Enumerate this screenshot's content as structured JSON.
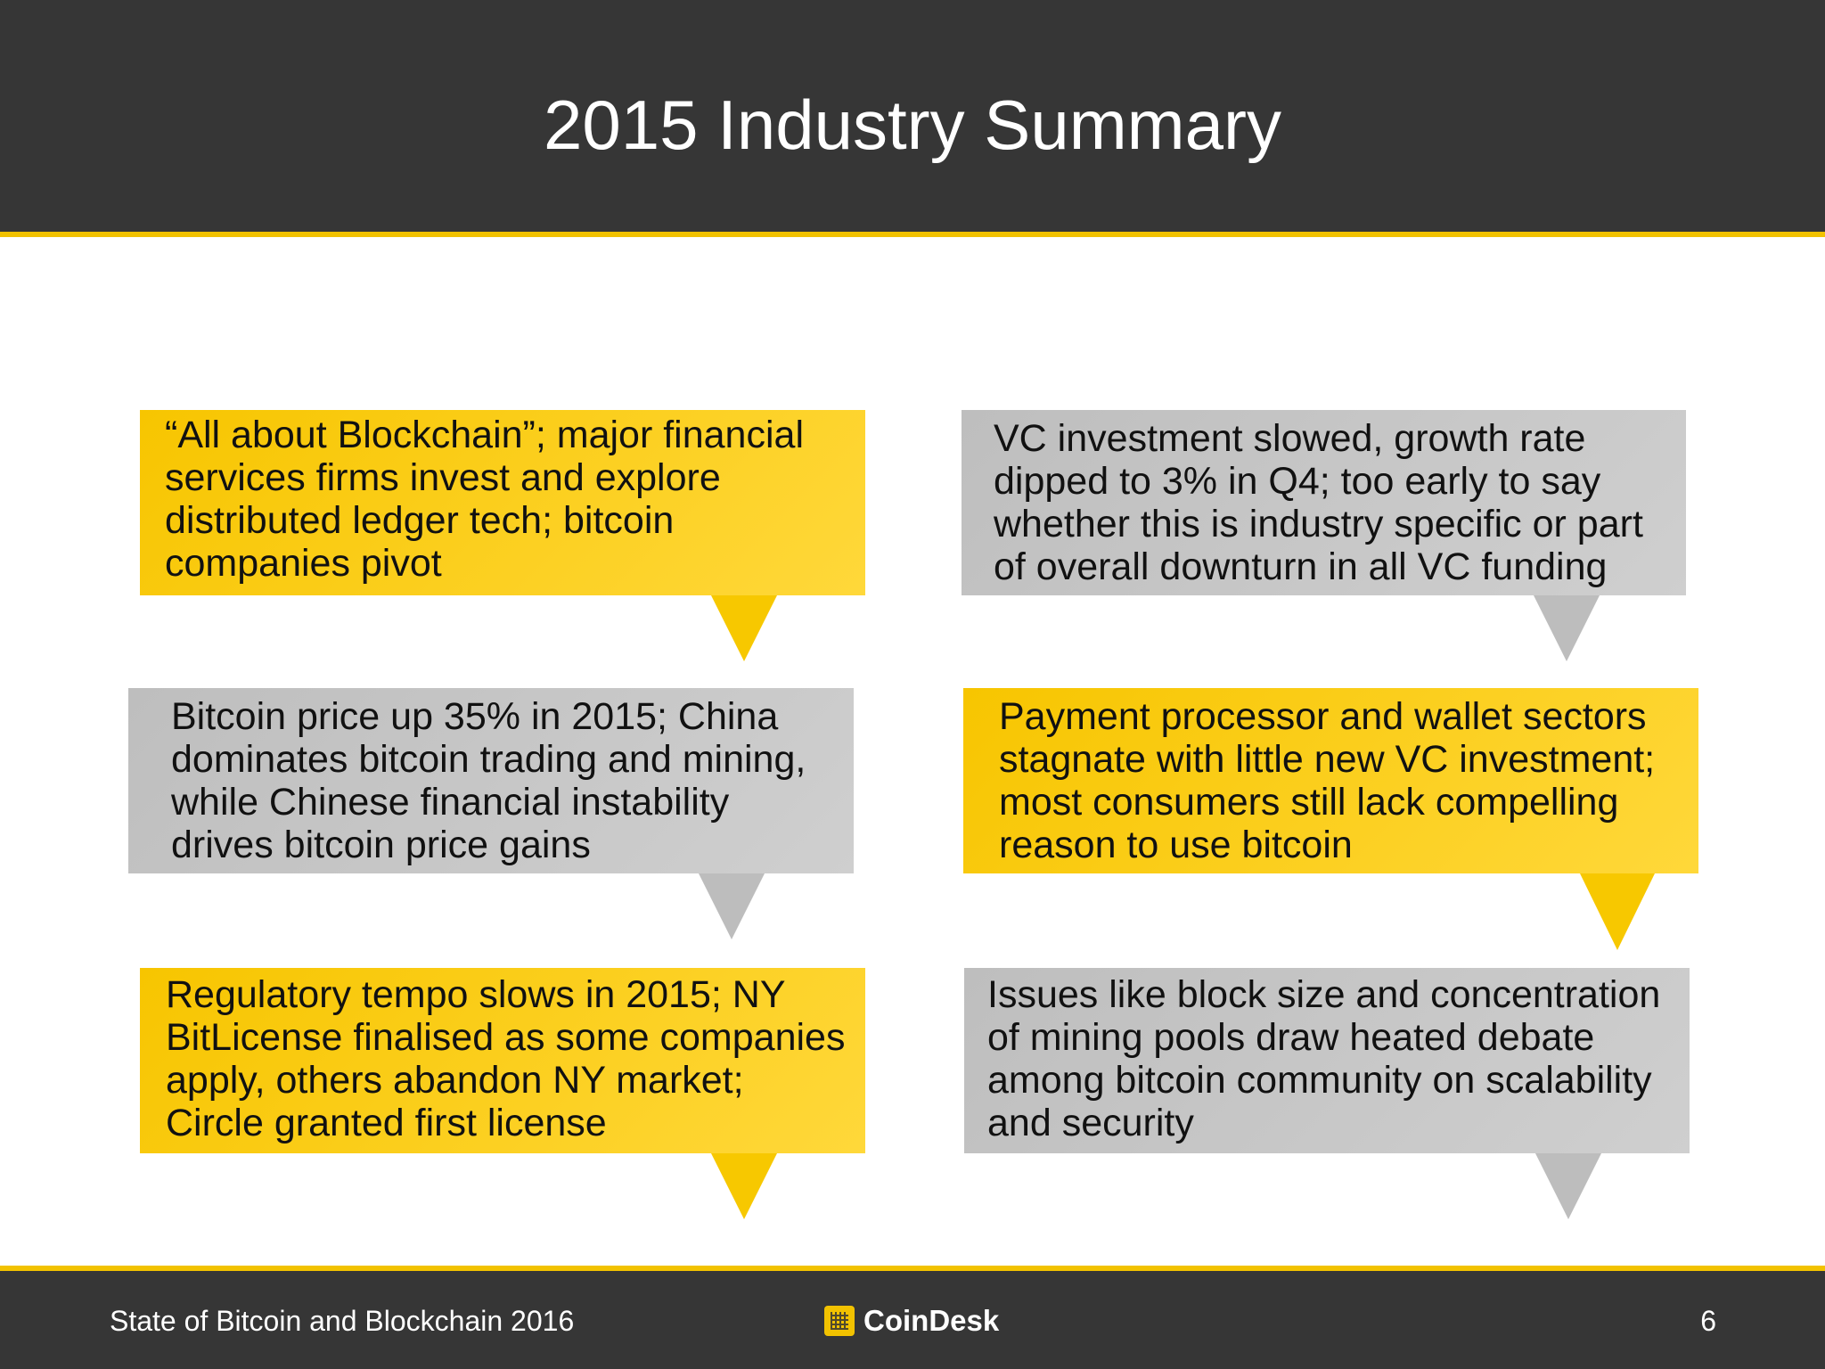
{
  "slide": {
    "title": "2015 Industry Summary"
  },
  "callouts": [
    {
      "text": "“All about Blockchain”; major financial services firms invest and explore distributed ledger tech; bitcoin companies pivot",
      "color": "yellow"
    },
    {
      "text": "VC investment slowed, growth rate dipped to 3% in Q4; too early to say whether this is industry specific or part of overall downturn in all VC funding",
      "color": "gray"
    },
    {
      "text": "Bitcoin price up 35% in 2015; China dominates bitcoin trading and mining, while Chinese financial instability drives bitcoin price gains",
      "color": "gray"
    },
    {
      "text": "Payment processor and wallet sectors stagnate with little new VC investment; most consumers still lack compelling reason to use bitcoin",
      "color": "yellow"
    },
    {
      "text": "Regulatory tempo slows in 2015; NY BitLicense finalised as some companies apply, others abandon NY market; Circle granted first license",
      "color": "yellow"
    },
    {
      "text": "Issues like block size and concentration of mining pools draw heated debate among bitcoin community on scalability and security",
      "color": "gray"
    }
  ],
  "footer": {
    "report_title": "State of Bitcoin and Blockchain 2016",
    "logo_text": "CoinDesk",
    "logo_icon": "coindesk-logo-icon",
    "page_number": "6"
  },
  "colors": {
    "header_bg": "#363636",
    "accent_yellow": "#f7c500",
    "callout_gray": "#c4c4c4"
  }
}
